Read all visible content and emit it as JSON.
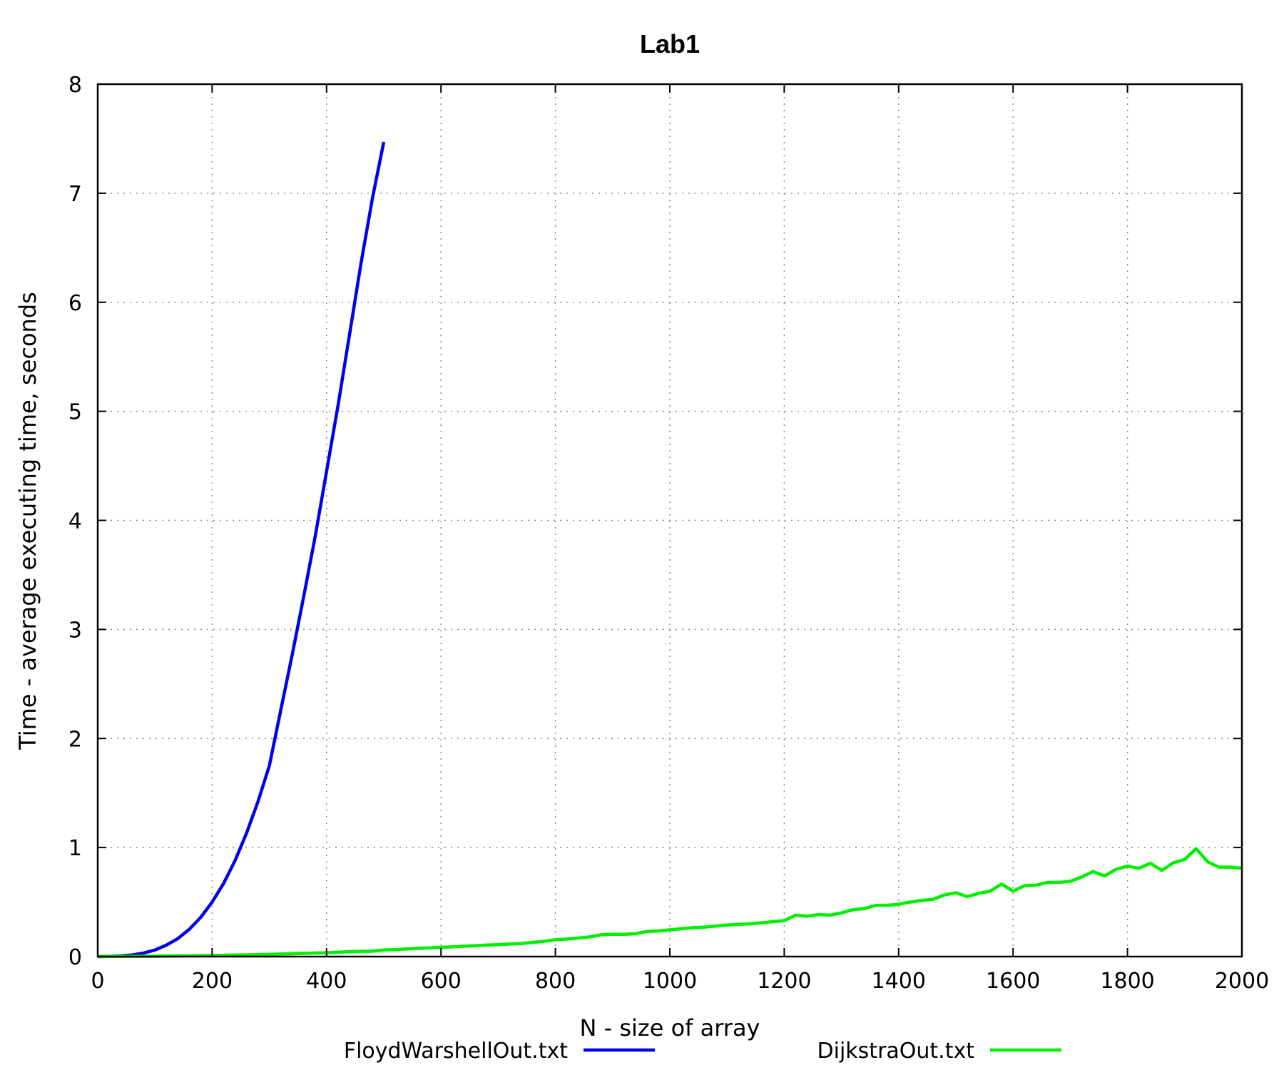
{
  "chart_data": {
    "type": "line",
    "title": "Lab1",
    "xlabel": "N - size of array",
    "ylabel": "Time - average executing time, seconds",
    "xlim": [
      0,
      2000
    ],
    "ylim": [
      0,
      8
    ],
    "xticks": [
      0,
      200,
      400,
      600,
      800,
      1000,
      1200,
      1400,
      1600,
      1800,
      2000
    ],
    "yticks": [
      0,
      1,
      2,
      3,
      4,
      5,
      6,
      7,
      8
    ],
    "grid": true,
    "legend_position": "bottom",
    "series": [
      {
        "name": "FloydWarshellOut.txt",
        "color": "#0000ee",
        "x": [
          0,
          20,
          40,
          60,
          80,
          100,
          120,
          140,
          160,
          180,
          200,
          220,
          240,
          260,
          280,
          300,
          320,
          340,
          360,
          380,
          400,
          420,
          440,
          460,
          480,
          500
        ],
        "y": [
          0.0,
          0.002,
          0.006,
          0.015,
          0.032,
          0.06,
          0.105,
          0.165,
          0.25,
          0.36,
          0.5,
          0.67,
          0.88,
          1.13,
          1.42,
          1.75,
          2.26,
          2.77,
          3.3,
          3.85,
          4.45,
          5.05,
          5.7,
          6.35,
          6.95,
          7.47
        ]
      },
      {
        "name": "DijkstraOut.txt",
        "color": "#00ee00",
        "x": [
          0,
          100,
          200,
          300,
          400,
          440,
          480,
          500,
          520,
          540,
          560,
          580,
          600,
          620,
          640,
          660,
          680,
          700,
          720,
          740,
          760,
          780,
          800,
          820,
          840,
          860,
          880,
          900,
          920,
          940,
          960,
          980,
          1000,
          1020,
          1040,
          1060,
          1080,
          1100,
          1120,
          1140,
          1160,
          1180,
          1200,
          1220,
          1240,
          1260,
          1280,
          1300,
          1320,
          1340,
          1360,
          1380,
          1400,
          1420,
          1440,
          1460,
          1480,
          1500,
          1520,
          1540,
          1560,
          1580,
          1600,
          1620,
          1640,
          1660,
          1680,
          1700,
          1720,
          1740,
          1760,
          1780,
          1800,
          1820,
          1840,
          1860,
          1880,
          1900,
          1920,
          1940,
          1960,
          1980,
          2000
        ],
        "y": [
          0.0,
          0.003,
          0.01,
          0.02,
          0.035,
          0.045,
          0.05,
          0.06,
          0.065,
          0.07,
          0.075,
          0.08,
          0.085,
          0.09,
          0.095,
          0.1,
          0.105,
          0.11,
          0.115,
          0.12,
          0.13,
          0.14,
          0.155,
          0.16,
          0.17,
          0.18,
          0.2,
          0.205,
          0.205,
          0.21,
          0.23,
          0.235,
          0.245,
          0.255,
          0.265,
          0.27,
          0.28,
          0.29,
          0.295,
          0.3,
          0.31,
          0.32,
          0.33,
          0.38,
          0.37,
          0.385,
          0.38,
          0.4,
          0.43,
          0.44,
          0.47,
          0.47,
          0.48,
          0.5,
          0.515,
          0.525,
          0.565,
          0.585,
          0.55,
          0.58,
          0.6,
          0.665,
          0.6,
          0.65,
          0.655,
          0.68,
          0.68,
          0.69,
          0.73,
          0.78,
          0.74,
          0.8,
          0.83,
          0.81,
          0.855,
          0.79,
          0.86,
          0.89,
          0.99,
          0.87,
          0.82,
          0.82,
          0.81
        ]
      }
    ]
  }
}
